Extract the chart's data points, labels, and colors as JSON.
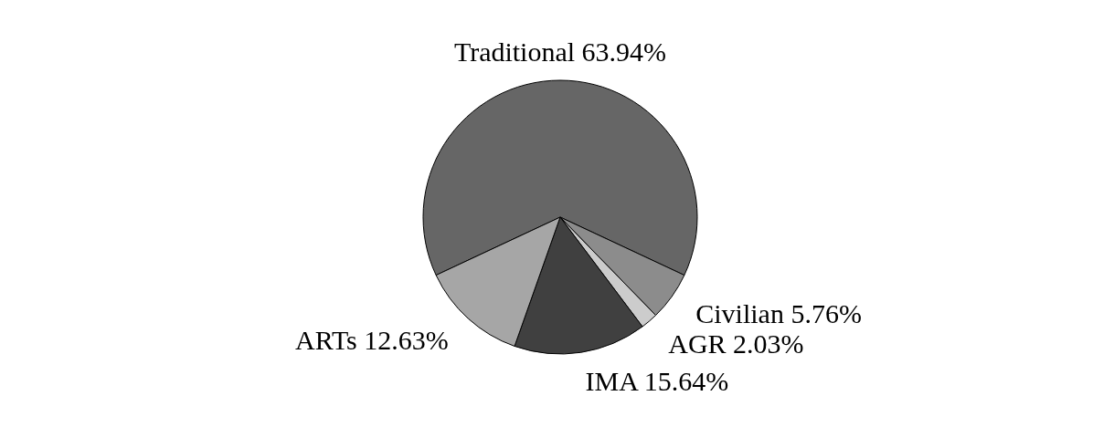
{
  "chart_data": {
    "type": "pie",
    "categories": [
      "Traditional",
      "Civilian",
      "AGR",
      "IMA",
      "ARTs"
    ],
    "values": [
      63.94,
      5.76,
      2.03,
      15.64,
      12.63
    ],
    "value_labels": [
      "63.94%",
      "5.76%",
      "2.03%",
      "15.64%",
      "12.63%"
    ],
    "colors": [
      "#666666",
      "#8c8c8c",
      "#cccccc",
      "#404040",
      "#a6a6a6"
    ],
    "legend": false
  }
}
